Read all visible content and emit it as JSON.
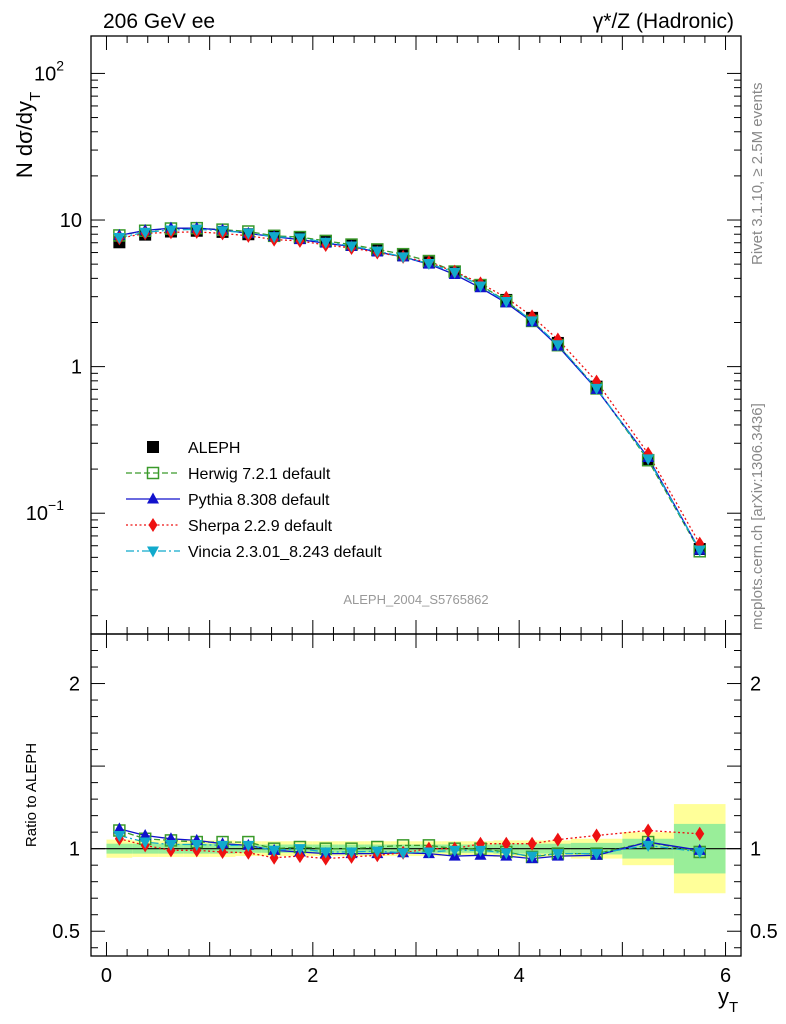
{
  "header": {
    "left": "206 GeV ee",
    "right": "γ*/Z (Hadronic)"
  },
  "side_labels": {
    "rivet": "Rivet 3.1.10, ≥ 2.5M events",
    "mcplots": "mcplots.cern.ch [arXiv:1306.3436]"
  },
  "analysis_id": "ALEPH_2004_S5765862",
  "chart_data": [
    {
      "type": "scatter",
      "panel": "main",
      "ylabel": "N dσ/dy_T",
      "xlabel": "",
      "yscale": "log",
      "ylim": [
        0.015,
        180
      ],
      "xlim": [
        -0.15,
        6.15
      ],
      "yticks": [
        {
          "value": 0.1,
          "base": "10",
          "exp": "−1"
        },
        {
          "value": 1,
          "base": "1",
          "exp": ""
        },
        {
          "value": 10,
          "base": "10",
          "exp": ""
        },
        {
          "value": 100,
          "base": "10",
          "exp": "2"
        }
      ],
      "x": [
        0.125,
        0.375,
        0.625,
        0.875,
        1.125,
        1.375,
        1.625,
        1.875,
        2.125,
        2.375,
        2.625,
        2.875,
        3.125,
        3.375,
        3.625,
        3.875,
        4.125,
        4.375,
        4.75,
        5.25,
        5.75
      ],
      "series": [
        {
          "name": "ALEPH",
          "color": "#000000",
          "marker": "square-filled",
          "line": "none",
          "values": [
            7.05,
            7.95,
            8.35,
            8.45,
            8.3,
            8.0,
            7.8,
            7.55,
            7.2,
            6.8,
            6.25,
            5.75,
            5.15,
            4.45,
            3.6,
            2.85,
            2.15,
            1.45,
            0.73,
            0.23,
            0.057
          ]
        },
        {
          "name": "Herwig 7.2.1 default",
          "color": "#3a9a2a",
          "marker": "square-open",
          "line": "dashed",
          "values": [
            7.85,
            8.45,
            8.75,
            8.8,
            8.6,
            8.35,
            7.8,
            7.65,
            7.2,
            6.8,
            6.3,
            5.85,
            5.25,
            4.45,
            3.6,
            2.8,
            2.05,
            1.4,
            0.71,
            0.23,
            0.055
          ]
        },
        {
          "name": "Pythia 8.308 default",
          "color": "#1111cc",
          "marker": "triangle-up",
          "line": "solid",
          "values": [
            7.85,
            8.5,
            8.8,
            8.8,
            8.55,
            8.1,
            7.7,
            7.35,
            6.95,
            6.6,
            6.05,
            5.6,
            5.0,
            4.25,
            3.45,
            2.72,
            2.02,
            1.38,
            0.7,
            0.24,
            0.056
          ]
        },
        {
          "name": "Sherpa 2.2.9 default",
          "color": "#ee1111",
          "marker": "diamond",
          "line": "dotted",
          "values": [
            7.5,
            8.1,
            8.25,
            8.3,
            8.1,
            7.8,
            7.35,
            7.2,
            6.75,
            6.45,
            6.0,
            5.6,
            5.15,
            4.45,
            3.7,
            2.95,
            2.2,
            1.53,
            0.79,
            0.255,
            0.062
          ]
        },
        {
          "name": "Vincia 2.3.01_8.243 default",
          "color": "#11aacc",
          "marker": "triangle-down",
          "line": "dashdot",
          "values": [
            7.6,
            8.25,
            8.55,
            8.65,
            8.45,
            8.15,
            7.7,
            7.55,
            7.05,
            6.65,
            6.15,
            5.6,
            5.05,
            4.4,
            3.55,
            2.78,
            2.05,
            1.41,
            0.71,
            0.235,
            0.056
          ]
        }
      ]
    },
    {
      "type": "scatter",
      "panel": "ratio",
      "ylabel": "Ratio to ALEPH",
      "xlabel": "y_T",
      "ylim": [
        0.35,
        2.3
      ],
      "xlim": [
        -0.15,
        6.15
      ],
      "yticks": [
        0.5,
        1,
        2
      ],
      "xticks": [
        0,
        2,
        4,
        6
      ],
      "bands": {
        "x_edges": [
          0.0,
          0.25,
          0.5,
          0.75,
          1.0,
          1.25,
          1.5,
          1.75,
          2.0,
          2.25,
          2.5,
          2.75,
          3.0,
          3.25,
          3.5,
          3.75,
          4.0,
          4.25,
          4.5,
          5.0,
          5.5,
          6.0
        ],
        "yellow": [
          0.055,
          0.05,
          0.05,
          0.05,
          0.05,
          0.045,
          0.045,
          0.045,
          0.045,
          0.045,
          0.045,
          0.045,
          0.045,
          0.045,
          0.045,
          0.05,
          0.05,
          0.05,
          0.06,
          0.1,
          0.27
        ],
        "green": [
          0.03,
          0.03,
          0.03,
          0.03,
          0.03,
          0.025,
          0.025,
          0.025,
          0.025,
          0.025,
          0.025,
          0.025,
          0.025,
          0.025,
          0.025,
          0.03,
          0.03,
          0.03,
          0.035,
          0.06,
          0.15
        ]
      },
      "series": [
        {
          "name": "Herwig 7.2.1 default",
          "values": [
            1.11,
            1.06,
            1.05,
            1.04,
            1.04,
            1.04,
            1.0,
            1.01,
            1.0,
            1.0,
            1.01,
            1.02,
            1.02,
            1.0,
            1.0,
            0.98,
            0.95,
            0.97,
            0.97,
            1.04,
            0.98
          ]
        },
        {
          "name": "Pythia 8.308 default",
          "values": [
            1.12,
            1.08,
            1.06,
            1.05,
            1.03,
            1.02,
            0.99,
            0.98,
            0.97,
            0.97,
            0.97,
            0.975,
            0.97,
            0.955,
            0.96,
            0.955,
            0.94,
            0.955,
            0.96,
            1.04,
            0.99
          ]
        },
        {
          "name": "Sherpa 2.2.9 default",
          "values": [
            1.06,
            1.02,
            0.99,
            0.99,
            0.98,
            0.975,
            0.945,
            0.955,
            0.94,
            0.95,
            0.96,
            0.975,
            1.0,
            1.0,
            1.03,
            1.03,
            1.03,
            1.055,
            1.08,
            1.11,
            1.09
          ]
        },
        {
          "name": "Vincia 2.3.01_8.243 default",
          "values": [
            1.08,
            1.04,
            1.025,
            1.025,
            1.02,
            1.02,
            0.99,
            1.0,
            0.98,
            0.98,
            0.985,
            0.975,
            0.98,
            0.99,
            0.99,
            0.975,
            0.955,
            0.97,
            0.97,
            1.02,
            0.98
          ]
        }
      ]
    }
  ]
}
